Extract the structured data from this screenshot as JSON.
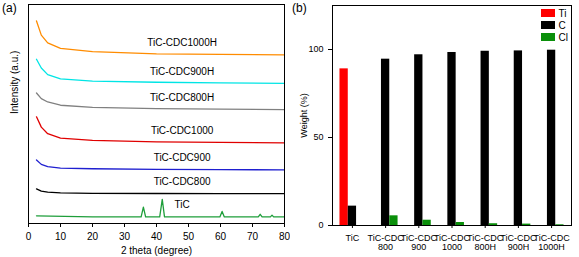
{
  "chart_data": [
    {
      "type": "line",
      "title": "(a)",
      "x_label": "2 theta (degree)",
      "y_label": "Intensity (a.u.)",
      "xlim": [
        0,
        80
      ],
      "xticks": [
        0,
        10,
        20,
        30,
        40,
        50,
        60,
        70,
        80
      ],
      "ylim": [
        0,
        100
      ],
      "yticks": [],
      "tick_labels": "x",
      "series": [
        {
          "name": "TiC-CDC1000H",
          "color": "#ff8c00",
          "x": [
            2.5,
            4,
            6,
            10,
            20,
            40,
            60,
            80
          ],
          "values": [
            92.5,
            86,
            82.5,
            80,
            78.5,
            77.5,
            77.2,
            77
          ]
        },
        {
          "name": "TiC-CDC900H",
          "color": "#00e5e5",
          "x": [
            2.5,
            4,
            6,
            10,
            20,
            40,
            60,
            80
          ],
          "values": [
            75,
            71,
            68,
            66,
            65,
            64.5,
            64.2,
            64
          ]
        },
        {
          "name": "TiC-CDC800H",
          "color": "#808080",
          "x": [
            2.5,
            4,
            6,
            10,
            20,
            40,
            60,
            80
          ],
          "values": [
            59.6,
            57,
            55.5,
            54,
            53,
            52.5,
            52.2,
            52
          ]
        },
        {
          "name": "TiC-CDC1000",
          "color": "#e00000",
          "x": [
            2.5,
            4,
            6,
            10,
            20,
            40,
            60,
            80
          ],
          "values": [
            48.7,
            44,
            41,
            39,
            38,
            37.3,
            37,
            36.8
          ]
        },
        {
          "name": "TiC-CDC900",
          "color": "#1f1fd0",
          "x": [
            2.5,
            4,
            6,
            10,
            20,
            40,
            60,
            80
          ],
          "values": [
            29,
            27,
            26,
            25.3,
            25,
            24.7,
            24.6,
            24.5
          ]
        },
        {
          "name": "TiC-CDC800",
          "color": "#000000",
          "x": [
            2.5,
            4,
            6,
            10,
            20,
            40,
            60,
            80
          ],
          "values": [
            15.8,
            14.8,
            14.3,
            14,
            13.8,
            13.7,
            13.6,
            13.6
          ]
        },
        {
          "name": "TiC",
          "color": "#1e9e3a",
          "x": [
            2.5,
            20,
            35.2,
            35.9,
            36.6,
            41.0,
            41.8,
            42.5,
            59.8,
            60.5,
            61.2,
            71.8,
            72.4,
            73.0,
            75.6,
            76.1,
            76.6,
            80
          ],
          "values": [
            3.5,
            3,
            3,
            7.5,
            3,
            3,
            11,
            3,
            3,
            5.5,
            3,
            3,
            4.2,
            3,
            3,
            3.8,
            3,
            3
          ]
        }
      ]
    },
    {
      "type": "bar",
      "title": "(b)",
      "y_label": "Weight (%)",
      "categories": [
        "TiC",
        "TiC-CDC\n800",
        "TiC-CDC\n900",
        "TiC-CDC\n1000",
        "TiC-CDC\n800H",
        "TiC-CDC\n900H",
        "TiC-CDC\n1000H"
      ],
      "ylim": [
        0,
        125
      ],
      "yticks": [
        0,
        50,
        100
      ],
      "legend": "upper right",
      "series": [
        {
          "name": "Ti",
          "color": "#ff0000",
          "values": [
            89,
            0,
            0,
            0,
            0,
            0,
            0
          ]
        },
        {
          "name": "C",
          "color": "#000000",
          "values": [
            11,
            94.5,
            97,
            98.3,
            99,
            99.2,
            99.6
          ]
        },
        {
          "name": "Cl",
          "color": "#0a8f0a",
          "values": [
            0,
            5.5,
            3,
            1.7,
            1,
            0.8,
            0.4
          ]
        }
      ]
    }
  ]
}
